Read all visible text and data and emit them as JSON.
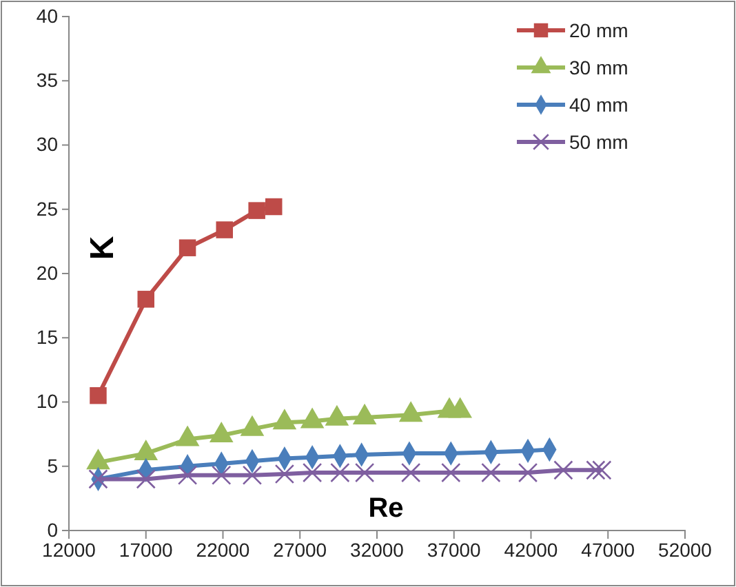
{
  "chart_data": {
    "type": "line",
    "xlabel": "Re",
    "ylabel": "K",
    "xlim": [
      12000,
      52000
    ],
    "xticks": [
      12000,
      17000,
      22000,
      27000,
      32000,
      37000,
      42000,
      47000,
      52000
    ],
    "ylim": [
      0,
      40
    ],
    "yticks": [
      0,
      5,
      10,
      15,
      20,
      25,
      30,
      35,
      40
    ],
    "grid": false,
    "legend": "top right",
    "series": [
      {
        "name": "20 mm",
        "color": "#be4b48",
        "marker": "square",
        "x": [
          13900,
          17000,
          19700,
          22100,
          24200,
          25300
        ],
        "values": [
          10.5,
          18,
          22,
          23.4,
          24.9,
          25.2
        ]
      },
      {
        "name": "30 mm",
        "color": "#9bbb59",
        "marker": "triangle",
        "x": [
          13900,
          17000,
          19700,
          21900,
          23900,
          26000,
          27800,
          29400,
          31200,
          34200,
          36700,
          37400
        ],
        "values": [
          5.3,
          6,
          7.1,
          7.4,
          7.9,
          8.4,
          8.5,
          8.7,
          8.8,
          9.0,
          9.3,
          9.3
        ]
      },
      {
        "name": "40 mm",
        "color": "#4a7ebb",
        "marker": "diamond",
        "x": [
          13900,
          17000,
          19700,
          21900,
          23900,
          26000,
          27800,
          29600,
          31000,
          34100,
          36800,
          39400,
          41800,
          43200
        ],
        "values": [
          4,
          4.7,
          5.0,
          5.2,
          5.4,
          5.6,
          5.7,
          5.8,
          5.9,
          6.0,
          6.0,
          6.1,
          6.2,
          6.3
        ]
      },
      {
        "name": "50 mm",
        "color": "#7f5fa0",
        "marker": "cross",
        "x": [
          13900,
          17000,
          19700,
          21900,
          23900,
          26000,
          27800,
          29600,
          31200,
          34200,
          36800,
          39400,
          41800,
          44100,
          46200,
          46600
        ],
        "values": [
          4.0,
          4.0,
          4.3,
          4.3,
          4.3,
          4.4,
          4.5,
          4.5,
          4.5,
          4.5,
          4.5,
          4.5,
          4.5,
          4.7,
          4.7,
          4.7
        ]
      }
    ]
  }
}
